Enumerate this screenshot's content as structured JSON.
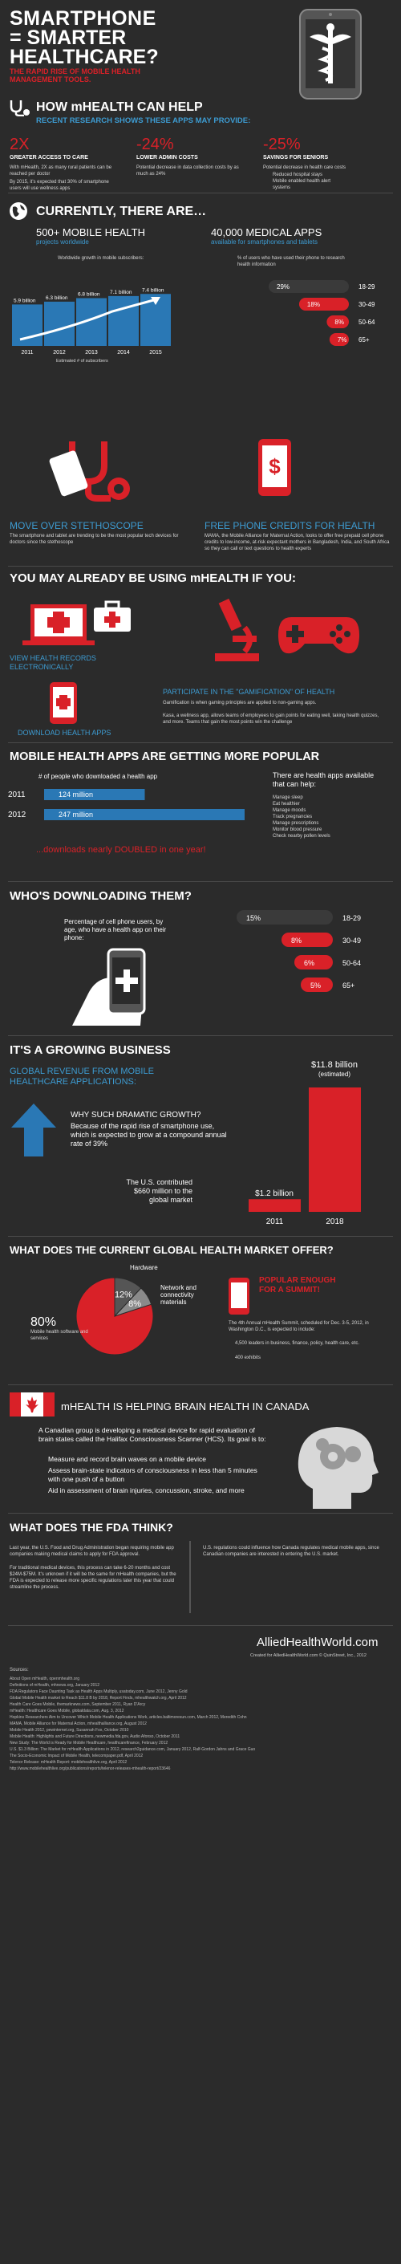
{
  "header": {
    "title_line1": "SMARTPHONE",
    "title_line2": "= SMARTER",
    "title_line3": "HEALTHCARE?",
    "subtitle_line1": "THE RAPID RISE OF MOBILE HEALTH",
    "subtitle_line2": "MANAGEMENT TOOLS."
  },
  "how": {
    "heading": "HOW mHEALTH CAN HELP",
    "subheading": "RECENT RESEARCH SHOWS THESE APPS MAY PROVIDE:",
    "col1_stat": "2X",
    "col1_title": "GREATER ACCESS TO CARE",
    "col1_text1": "With mHealth, 2X as many rural patients can be reached per doctor",
    "col1_text2": "By 2015, it's expected that 30% of smartphone users will use wellness apps",
    "col2_stat": "-24%",
    "col2_title": "LOWER ADMIN COSTS",
    "col2_text": "Potential decrease in data collection costs by as much as 24%",
    "col3_stat": "-25%",
    "col3_title": "SAVINGS FOR SENIORS",
    "col3_text": "Potential decrease in health care costs",
    "col3_bullet1": "Reduced hospital stays",
    "col3_bullet2": "Mobile enabled health alert systems"
  },
  "currently": {
    "heading": "CURRENTLY, THERE ARE…",
    "stat1": "500+ MOBILE HEALTH",
    "stat1_sub": "projects worldwide",
    "stat2": "40,000 MEDICAL APPS",
    "stat2_sub": "available for smartphones and tablets"
  },
  "chart_subscribers": {
    "title": "Worldwide growth in mobile subscribers:",
    "footnote": "Estimated # of subscribers"
  },
  "chart_research": {
    "title": "% of users who have used their phone to research health information"
  },
  "chart_data": [
    {
      "type": "bar",
      "title": "Worldwide growth in mobile subscribers:",
      "categories": [
        "2011",
        "2012",
        "2013",
        "2014",
        "2015"
      ],
      "labels": [
        "5.9 billion",
        "6.3 billion",
        "6.8 billion",
        "7.1 billion",
        "7.4 billion"
      ],
      "values": [
        5.9,
        6.3,
        6.8,
        7.1,
        7.4
      ],
      "xlabel": "Estimated # of subscribers",
      "ylim": [
        0,
        8
      ]
    },
    {
      "type": "bar",
      "title": "% of users who have used their phone to research health information",
      "categories": [
        "18-29",
        "30-49",
        "50-64",
        "65+"
      ],
      "labels": [
        "29%",
        "18%",
        "8%",
        "7%"
      ],
      "values": [
        29,
        18,
        8,
        7
      ]
    },
    {
      "type": "bar",
      "title": "# of people who downloaded a health app",
      "categories": [
        "2011",
        "2012"
      ],
      "labels": [
        "124 million",
        "247 million"
      ],
      "values": [
        124,
        247
      ]
    },
    {
      "type": "bar",
      "title": "Percentage of cell phone users, by age, who have a health app on their phone:",
      "categories": [
        "18-29",
        "30-49",
        "50-64",
        "65+"
      ],
      "labels": [
        "15%",
        "8%",
        "6%",
        "5%"
      ],
      "values": [
        15,
        8,
        6,
        5
      ]
    },
    {
      "type": "bar",
      "title": "GLOBAL REVENUE FROM MOBILE HEALTHCARE APPLICATIONS:",
      "categories": [
        "2011",
        "2018"
      ],
      "labels": [
        "$1.2 billion",
        "$11.8 billion (estimated)"
      ],
      "values": [
        1.2,
        11.8
      ]
    },
    {
      "type": "pie",
      "title": "WHAT DOES THE CURRENT GLOBAL HEALTH MARKET OFFER?",
      "categories": [
        "Mobile health software and services",
        "Network and connectivity materials",
        "Hardware"
      ],
      "labels": [
        "80%",
        "12%",
        "8%"
      ],
      "values": [
        80,
        12,
        8
      ]
    }
  ],
  "icons": {
    "stethoscope": {
      "title": "MOVE OVER STETHOSCOPE",
      "text": "The smartphone and tablet are trending to be the most popular tech devices for doctors since the stethoscope"
    },
    "credits": {
      "title": "FREE PHONE CREDITS FOR HEALTH",
      "text": "MAMA, the Mobile Alliance for Maternal Action, looks to offer free prepaid cell phone credits to low-income, at-risk expectant mothers in Bangladesh, India, and South Africa so they can call or text questions to health experts"
    }
  },
  "already": {
    "heading": "YOU MAY ALREADY BE USING mHEALTH IF YOU:",
    "item1": "VIEW HEALTH RECORDS ELECTRONICALLY",
    "item2": "DOWNLOAD HEALTH APPS",
    "item3": "PARTICIPATE IN THE \"GAMIFICATION\" OF HEALTH",
    "item3_text1": "Gamification is when gaming principles are applied to non-gaming apps.",
    "item3_text2": "Kasa, a wellness app, allows teams of employees to gain points for eating well, taking health quizzes, and more. Teams that gain the most points win the challenge"
  },
  "popular": {
    "heading": "MOBILE HEALTH APPS ARE GETTING MORE POPULAR",
    "chart_title": "# of people who downloaded a health app",
    "downloads_note": "...downloads nearly DOUBLED in one year!",
    "apps_title": "There are health apps available that can help:",
    "apps_items": [
      "Manage sleep",
      "Eat healthier",
      "Manage moods",
      "Track pregnancies",
      "Manage prescriptions",
      "Monitor blood pressure",
      "Check nearby pollen levels"
    ]
  },
  "who": {
    "heading": "WHO'S DOWNLOADING THEM?",
    "text": "Percentage of cell phone users, by age, who have a health app on their phone:"
  },
  "business": {
    "heading": "IT'S A GROWING BUSINESS",
    "subheading_line1": "GLOBAL REVENUE FROM MOBILE",
    "subheading_line2": "HEALTHCARE APPLICATIONS:",
    "why_title": "WHY SUCH DRAMATIC GROWTH?",
    "why_text": "Because of the rapid rise of smartphone use, which is expected to grow at a compound annual rate of 39%",
    "contrib": "The U.S. contributed $660 million to the global market",
    "label_2011": "$1.2 billion",
    "label_2018": "$11.8 billion",
    "label_2018_note": "(estimated)",
    "year_2011": "2011",
    "year_2018": "2018"
  },
  "market": {
    "heading": "WHAT DOES THE CURRENT GLOBAL HEALTH MARKET OFFER?",
    "hardware": "Hardware",
    "network": "Network and connectivity materials",
    "pct_80": "80%",
    "pct_12": "12%",
    "pct_8": "8%",
    "software": "Mobile health software and services",
    "summit_title_line1": "POPULAR ENOUGH",
    "summit_title_line2": "FOR A SUMMIT!",
    "summit_text": "The 4th Annual mHealth Summit, scheduled for Dec. 3-5, 2012, in Washington D.C., is expected to include:",
    "summit_items": [
      "4,500 leaders in business, finance, policy, health care, etc.",
      "400 exhibits"
    ]
  },
  "canada": {
    "heading": "mHEALTH IS HELPING BRAIN HEALTH IN CANADA",
    "text": "A Canadian group is developing a medical device for rapid evaluation of brain states called the Halifax Consciousness Scanner (HCS). Its goal is to:",
    "items": [
      "Measure and record brain waves on a mobile device",
      "Assess brain-state indicators of consciousness in less than 5 minutes with one push of a button",
      "Aid in assessment of brain injuries, concussion, stroke, and more"
    ]
  },
  "fda": {
    "heading": "WHAT DOES THE FDA THINK?",
    "text1": "Last year, the U.S. Food and Drug Administration began requiring mobile app companies making medical claims to apply for FDA approval.",
    "text2": "For traditional medical devices, this process can take 6-20 months and cost $24M-$75M. It's unknown if it will be the same for mHealth companies, but the FDA is expected to release more specific regulations later this year that could streamline the process.",
    "text3": "U.S. regulations could influence how Canada regulates medical mobile apps, since Canadian companies are interested in entering the U.S. market."
  },
  "footer": {
    "logo": "AlliedHealthWorld.com",
    "credit": "Created for AlliedHealthWorld.com © QuinStreet, Inc., 2012",
    "sources_title": "Sources:",
    "sources": [
      "About Open mHealth, openmhealth.org",
      "Definitions of mHealth, mhnews.org, January 2012",
      "FDA Regulators Face Daunting Task as Health Apps Multiply, usatoday.com, June 2012, Jenny Gold",
      "Global Mobile Health market to Reach $11.8 B by 2018, Report Finds, mhealthwatch.org, April 2012",
      "Health Care Goes Mobile, themarknews.com, September 2011, Ryan D'Arcy",
      "mHealth: Healthcare Goes Mobile, globaldata.com, Aug. 3, 2012",
      "Hopkins Researchers Aim to Uncover Which Mobile Health Applications Work, articles.baltimoresun.com, March 2012, Meredith Cohn",
      "MAMA, Mobile Alliance for Maternal Action, mhealthalliance.org, August 2012",
      "Mobile Health 2012, pewinternet.org, Susannah Fox, October 2010",
      "Mobile Health: Highlights and Future Directions, newmedia.fda.gov, Audio Afonso, October 2011",
      "New Study: The World is Ready for Mobile Healthcare, healthcarefinance, February 2012",
      "U.S. $1.3 Billion: The Market for mHealth Applications in 2012, research2guidance.com, January 2012, Ralf-Gordon Jahns and Grace Guo",
      "The Socio-Economic Impact of Mobile Health, telecompaper.pdf, April 2012",
      "Telenor Release: mHealth Report: mobilehealthlive.org, April 2012",
      "http://www.mobilehealthlive.org/publications/reports/telenor-releases-mhealth-report/23646"
    ]
  },
  "colors": {
    "background": "#2b2b2b",
    "accent_red": "#d92128",
    "accent_blue": "#3d9bd1",
    "bar_blue": "#2a78b5"
  }
}
